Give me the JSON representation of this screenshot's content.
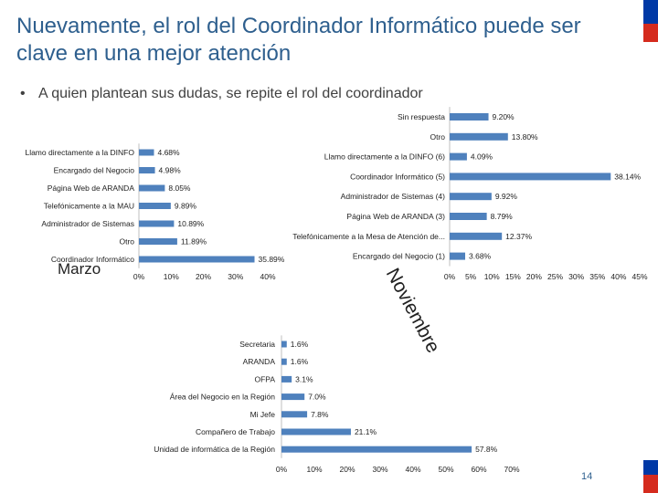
{
  "title": "Nuevamente, el rol del Coordinador Informático puede ser clave en una mejor atención",
  "bullet": "A quien plantean sus dudas, se repite el rol del coordinador",
  "page_number": "14",
  "colors": {
    "bar": "#4f81bd",
    "title": "#2e5f8e",
    "flag_blue": "#0039a6",
    "flag_red": "#d52b1e"
  },
  "chart_data": [
    {
      "id": "marzo",
      "type": "bar",
      "orientation": "horizontal",
      "title": "Marzo",
      "categories": [
        "Llamo directamente a la DINFO",
        "Encargado del Negocio",
        "Página Web de ARANDA",
        "Telefónicamente a la MAU",
        "Administrador de Sistemas",
        "Otro",
        "Coordinador Informático"
      ],
      "values": [
        4.68,
        4.98,
        8.05,
        9.89,
        10.89,
        11.89,
        35.89
      ],
      "value_labels": [
        "4.68%",
        "4.98%",
        "8.05%",
        "9.89%",
        "10.89%",
        "11.89%",
        "35.89%"
      ],
      "xlim": [
        0,
        40
      ],
      "ticks": [
        0,
        10,
        20,
        30,
        40
      ],
      "tick_labels": [
        "0%",
        "10%",
        "20%",
        "30%",
        "40%"
      ]
    },
    {
      "id": "noviembre",
      "type": "bar",
      "orientation": "horizontal",
      "title": "Noviembre",
      "categories": [
        "Sin respuesta",
        "Otro",
        "Llamo directamente a la DINFO (6)",
        "Coordinador Informático (5)",
        "Administrador de Sistemas (4)",
        "Página Web de ARANDA (3)",
        "Telefónicamente a la Mesa de Atención de...",
        "Encargado del Negocio (1)"
      ],
      "values": [
        9.2,
        13.8,
        4.09,
        38.14,
        9.92,
        8.79,
        12.37,
        3.68
      ],
      "value_labels": [
        "9.20%",
        "13.80%",
        "4.09%",
        "38.14%",
        "9.92%",
        "8.79%",
        "12.37%",
        "3.68%"
      ],
      "xlim": [
        0,
        45
      ],
      "ticks": [
        0,
        5,
        10,
        15,
        20,
        25,
        30,
        35,
        40,
        45
      ],
      "tick_labels": [
        "0%",
        "5%",
        "10%",
        "15%",
        "20%",
        "25%",
        "30%",
        "35%",
        "40%",
        "45%"
      ]
    },
    {
      "id": "tercero",
      "type": "bar",
      "orientation": "horizontal",
      "title": "",
      "categories": [
        "Secretaria",
        "ARANDA",
        "OFPA",
        "Área del Negocio en la Región",
        "Mi Jefe",
        "Compañero de Trabajo",
        "Unidad de informática de la Región"
      ],
      "values": [
        1.6,
        1.6,
        3.1,
        7.0,
        7.8,
        21.1,
        57.8
      ],
      "value_labels": [
        "1.6%",
        "1.6%",
        "3.1%",
        "7.0%",
        "7.8%",
        "21.1%",
        "57.8%"
      ],
      "xlim": [
        0,
        70
      ],
      "ticks": [
        0,
        10,
        20,
        30,
        40,
        50,
        60,
        70
      ],
      "tick_labels": [
        "0%",
        "10%",
        "20%",
        "30%",
        "40%",
        "50%",
        "60%",
        "70%"
      ]
    }
  ]
}
